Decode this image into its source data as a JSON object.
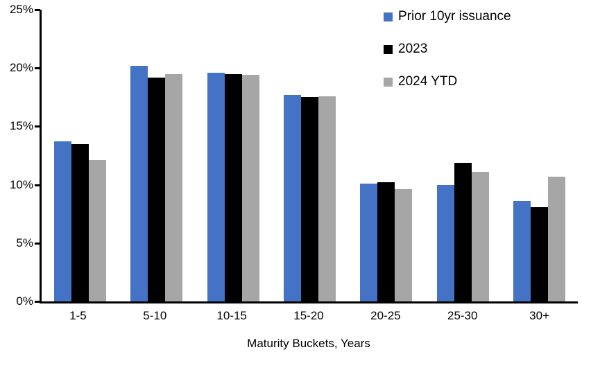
{
  "chart_data": {
    "type": "bar",
    "title": "",
    "xlabel": "Maturity Buckets, Years",
    "ylabel": "",
    "ylim": [
      0,
      25
    ],
    "grid": false,
    "legend_position": "top-right",
    "y_ticks": [
      {
        "value": 25,
        "label": "25%"
      },
      {
        "value": 20,
        "label": "20%"
      },
      {
        "value": 15,
        "label": "15%"
      },
      {
        "value": 10,
        "label": "10%"
      },
      {
        "value": 5,
        "label": "5%"
      },
      {
        "value": 0,
        "label": "0%"
      }
    ],
    "categories": [
      "1-5",
      "5-10",
      "10-15",
      "15-20",
      "20-25",
      "25-30",
      "30+"
    ],
    "series": [
      {
        "name": "Prior 10yr issuance",
        "color": "#4472C4",
        "values": [
          13.7,
          20.2,
          19.6,
          17.7,
          10.1,
          10.0,
          8.6
        ]
      },
      {
        "name": "2023",
        "color": "#000000",
        "values": [
          13.5,
          19.2,
          19.5,
          17.5,
          10.2,
          11.9,
          8.1
        ]
      },
      {
        "name": "2024 YTD",
        "color": "#A6A6A6",
        "values": [
          12.1,
          19.5,
          19.4,
          17.6,
          9.6,
          11.1,
          10.7
        ]
      }
    ]
  }
}
